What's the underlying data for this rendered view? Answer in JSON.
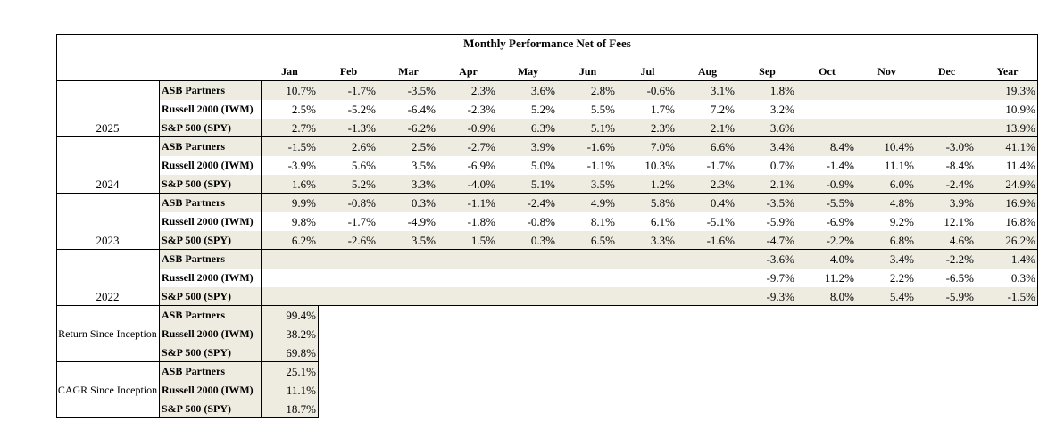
{
  "title": "Monthly Performance Net of Fees",
  "columns": [
    "Jan",
    "Feb",
    "Mar",
    "Apr",
    "May",
    "Jun",
    "Jul",
    "Aug",
    "Sep",
    "Oct",
    "Nov",
    "Dec",
    "Year"
  ],
  "groups": [
    {
      "label": "2025",
      "rows": [
        {
          "name": "ASB Partners",
          "cells": [
            "10.7%",
            "-1.7%",
            "-3.5%",
            "2.3%",
            "3.6%",
            "2.8%",
            "-0.6%",
            "3.1%",
            "1.8%",
            null,
            null,
            null,
            "19.3%"
          ]
        },
        {
          "name": "Russell 2000 (IWM)",
          "cells": [
            "2.5%",
            "-5.2%",
            "-6.4%",
            "-2.3%",
            "5.2%",
            "5.5%",
            "1.7%",
            "7.2%",
            "3.2%",
            null,
            null,
            null,
            "10.9%"
          ]
        },
        {
          "name": "S&P 500 (SPY)",
          "cells": [
            "2.7%",
            "-1.3%",
            "-6.2%",
            "-0.9%",
            "6.3%",
            "5.1%",
            "2.3%",
            "2.1%",
            "3.6%",
            null,
            null,
            null,
            "13.9%"
          ]
        }
      ]
    },
    {
      "label": "2024",
      "rows": [
        {
          "name": "ASB Partners",
          "cells": [
            "-1.5%",
            "2.6%",
            "2.5%",
            "-2.7%",
            "3.9%",
            "-1.6%",
            "7.0%",
            "6.6%",
            "3.4%",
            "8.4%",
            "10.4%",
            "-3.0%",
            "41.1%"
          ]
        },
        {
          "name": "Russell 2000 (IWM)",
          "cells": [
            "-3.9%",
            "5.6%",
            "3.5%",
            "-6.9%",
            "5.0%",
            "-1.1%",
            "10.3%",
            "-1.7%",
            "0.7%",
            "-1.4%",
            "11.1%",
            "-8.4%",
            "11.4%"
          ]
        },
        {
          "name": "S&P 500 (SPY)",
          "cells": [
            "1.6%",
            "5.2%",
            "3.3%",
            "-4.0%",
            "5.1%",
            "3.5%",
            "1.2%",
            "2.3%",
            "2.1%",
            "-0.9%",
            "6.0%",
            "-2.4%",
            "24.9%"
          ]
        }
      ]
    },
    {
      "label": "2023",
      "rows": [
        {
          "name": "ASB Partners",
          "cells": [
            "9.9%",
            "-0.8%",
            "0.3%",
            "-1.1%",
            "-2.4%",
            "4.9%",
            "5.8%",
            "0.4%",
            "-3.5%",
            "-5.5%",
            "4.8%",
            "3.9%",
            "16.9%"
          ]
        },
        {
          "name": "Russell 2000 (IWM)",
          "cells": [
            "9.8%",
            "-1.7%",
            "-4.9%",
            "-1.8%",
            "-0.8%",
            "8.1%",
            "6.1%",
            "-5.1%",
            "-5.9%",
            "-6.9%",
            "9.2%",
            "12.1%",
            "16.8%"
          ]
        },
        {
          "name": "S&P 500 (SPY)",
          "cells": [
            "6.2%",
            "-2.6%",
            "3.5%",
            "1.5%",
            "0.3%",
            "6.5%",
            "3.3%",
            "-1.6%",
            "-4.7%",
            "-2.2%",
            "6.8%",
            "4.6%",
            "26.2%"
          ]
        }
      ]
    },
    {
      "label": "2022",
      "rows": [
        {
          "name": "ASB Partners",
          "cells": [
            null,
            null,
            null,
            null,
            null,
            null,
            null,
            null,
            "-3.6%",
            "4.0%",
            "3.4%",
            "-2.2%",
            "1.4%"
          ]
        },
        {
          "name": "Russell 2000 (IWM)",
          "cells": [
            null,
            null,
            null,
            null,
            null,
            null,
            null,
            null,
            "-9.7%",
            "11.2%",
            "2.2%",
            "-6.5%",
            "0.3%"
          ]
        },
        {
          "name": "S&P 500 (SPY)",
          "cells": [
            null,
            null,
            null,
            null,
            null,
            null,
            null,
            null,
            "-9.3%",
            "8.0%",
            "5.4%",
            "-5.9%",
            "-1.5%"
          ]
        }
      ]
    }
  ],
  "summary": [
    {
      "label": "Return Since Inception",
      "rows": [
        {
          "name": "ASB Partners",
          "value": "99.4%"
        },
        {
          "name": "Russell 2000 (IWM)",
          "value": "38.2%"
        },
        {
          "name": "S&P 500 (SPY)",
          "value": "69.8%"
        }
      ]
    },
    {
      "label": "CAGR Since Inception",
      "rows": [
        {
          "name": "ASB Partners",
          "value": "25.1%"
        },
        {
          "name": "Russell 2000 (IWM)",
          "value": "11.1%"
        },
        {
          "name": "S&P 500 (SPY)",
          "value": "18.7%"
        }
      ]
    }
  ]
}
